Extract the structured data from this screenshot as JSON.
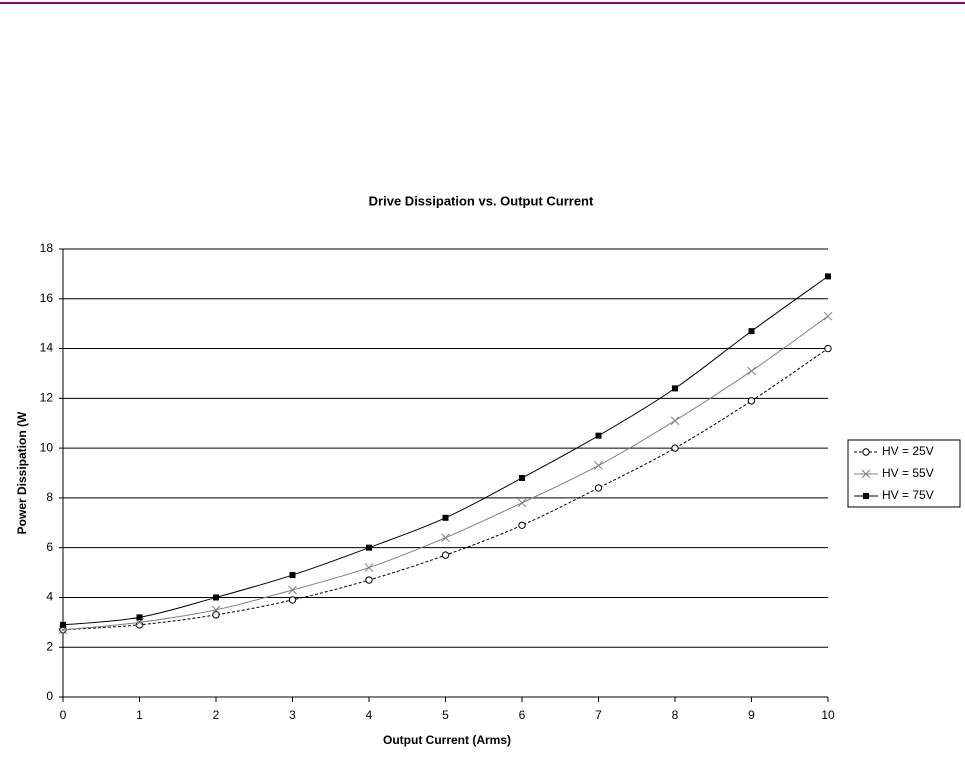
{
  "chart_data": {
    "type": "line",
    "title": "Drive Dissipation vs. Output Current",
    "x_label": "Output Current (Arms)",
    "y_label": "Power Dissipation (W",
    "x": [
      0,
      1,
      2,
      3,
      4,
      5,
      6,
      7,
      8,
      9,
      10
    ],
    "xlim": [
      0,
      10
    ],
    "xticks": [
      0,
      1,
      2,
      3,
      4,
      5,
      6,
      7,
      8,
      9,
      10
    ],
    "ylim": [
      0,
      18
    ],
    "yticks": [
      0,
      2,
      4,
      6,
      8,
      10,
      12,
      14,
      16,
      18
    ],
    "grid": true,
    "smooth": true,
    "legend": "right",
    "series": [
      {
        "name": "HV = 25V",
        "color": "#000000",
        "marker": "circle",
        "dashed": true,
        "values": [
          2.7,
          2.9,
          3.3,
          3.9,
          4.7,
          5.7,
          6.9,
          8.4,
          10.0,
          11.9,
          14.0
        ]
      },
      {
        "name": "HV = 55V",
        "color": "#808080",
        "marker": "cross",
        "dashed": false,
        "values": [
          2.7,
          3.0,
          3.5,
          4.3,
          5.2,
          6.4,
          7.8,
          9.3,
          11.1,
          13.1,
          15.3
        ]
      },
      {
        "name": "HV = 75V",
        "color": "#000000",
        "marker": "square",
        "dashed": false,
        "values": [
          2.9,
          3.2,
          4.0,
          4.9,
          6.0,
          7.2,
          8.8,
          10.5,
          12.4,
          14.7,
          16.9
        ]
      }
    ]
  }
}
